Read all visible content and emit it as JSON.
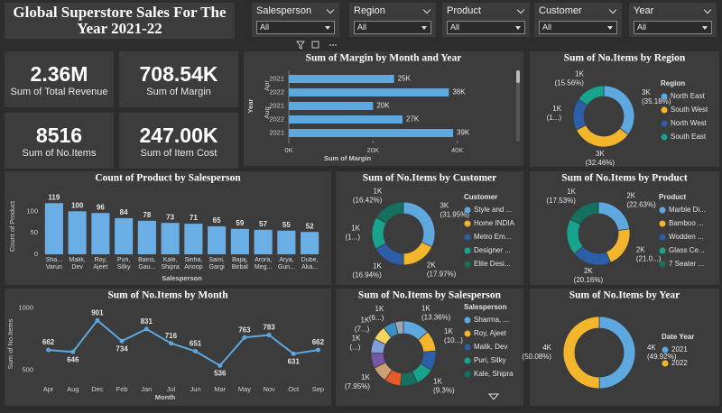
{
  "header": {
    "title": "Global Superstore Sales For The Year 2021-22"
  },
  "slicers": [
    {
      "label": "Salesperson",
      "value": "All"
    },
    {
      "label": "Region",
      "value": "All"
    },
    {
      "label": "Product",
      "value": "All"
    },
    {
      "label": "Customer",
      "value": "All"
    },
    {
      "label": "Year",
      "value": "All"
    }
  ],
  "cards": [
    {
      "value": "2.36M",
      "label": "Sum of Total Revenue"
    },
    {
      "value": "708.54K",
      "label": "Sum of Margin"
    },
    {
      "value": "8516",
      "label": "Sum of No.Items"
    },
    {
      "value": "247.00K",
      "label": "Sum of Item Cost"
    }
  ],
  "chart_data": [
    {
      "type": "hbar",
      "title": "Sum of Margin by Month and Year",
      "categories": [
        "2021",
        "2022",
        "2021",
        "2022",
        "2021"
      ],
      "group_labels": [
        "Apr",
        "Apr",
        "Aug",
        "Aug",
        null
      ],
      "values": [
        25000,
        38000,
        20000,
        27000,
        39000
      ],
      "value_labels": [
        "25K",
        "38K",
        "20K",
        "27K",
        "39K"
      ],
      "color": "#5ea8e0",
      "xlim": [
        0,
        45000
      ],
      "xticks": [
        {
          "value": 0,
          "label": "0K"
        },
        {
          "value": 20000,
          "label": "20K"
        },
        {
          "value": 40000,
          "label": "40K"
        }
      ],
      "x_label": "Sum of Margin",
      "y_label": "Year"
    },
    {
      "type": "donut",
      "title": "Sum of No.Items by Region",
      "legend_title": "Region",
      "categories": [
        "North East",
        "South West",
        "North West",
        "South East"
      ],
      "values": [
        2996,
        2764,
        1431,
        1325
      ],
      "value_labels": [
        "3K",
        "3K",
        "1K",
        "1K"
      ],
      "percent_labels": [
        "(35.18%)",
        "(32.46%)",
        "(1...)",
        "(15.56%)"
      ],
      "colors": [
        "#5ea8e0",
        "#f2b52c",
        "#2c5fa8",
        "#18a38f"
      ]
    },
    {
      "type": "bar",
      "title": "Count of Product by Salesperson",
      "categories": [
        "Sha... Varun",
        "Malik, Dev",
        "Roy, Ajeet",
        "Puri, Silky",
        "Bains, Gau...",
        "Kale, Shipra",
        "Sinha, Anoop",
        "Saini, Gargi",
        "Bajaj, Birbal",
        "Arora, Meg...",
        "Arya, Gun...",
        "Dube, Aka..."
      ],
      "values": [
        119,
        100,
        96,
        84,
        78,
        73,
        71,
        65,
        59,
        57,
        55,
        52
      ],
      "color": "#6aaee6",
      "ylim": [
        0,
        130
      ],
      "yticks": [
        0,
        50,
        100
      ],
      "x_label": "Salesperson",
      "y_label": "Count of Product"
    },
    {
      "type": "donut",
      "title": "Sum of No.Items by Customer",
      "legend_title": "Customer",
      "categories": [
        "Style and ...",
        "Home INDIA",
        "Metro Em...",
        "Designer ...",
        "Elite Desi..."
      ],
      "values": [
        2721,
        1530,
        1443,
        1424,
        1398
      ],
      "value_labels": [
        "3K",
        "2K",
        "1K",
        "1K",
        "1K"
      ],
      "percent_labels": [
        "(31.95%)",
        "(17.97%)",
        "(16.94%)",
        "(1...)",
        "(16.42%)"
      ],
      "colors": [
        "#5ea8e0",
        "#f2b52c",
        "#2c5fa8",
        "#18a38f",
        "#157060"
      ]
    },
    {
      "type": "donut",
      "title": "Sum of No.Items by Product",
      "legend_title": "Product",
      "categories": [
        "Marble Di...",
        "Bamboo ...",
        "Wodden ...",
        "Glass Ce...",
        "7 Seater ..."
      ],
      "values": [
        1927,
        1790,
        1717,
        1591,
        1493
      ],
      "value_labels": [
        "2K",
        "2K",
        "2K",
        null,
        "1K"
      ],
      "percent_labels": [
        "(22.63%)",
        "(21.0...)",
        "(20.16%)",
        null,
        "(17.53%)"
      ],
      "colors": [
        "#5ea8e0",
        "#f2b52c",
        "#2c5fa8",
        "#18a38f",
        "#157060"
      ]
    },
    {
      "type": "line",
      "title": "Sum of No.Items by Month",
      "categories": [
        "Apr",
        "Aug",
        "Dec",
        "Feb",
        "Jan",
        "Jul",
        "Jun",
        "Mar",
        "May",
        "Nov",
        "Oct",
        "Sep"
      ],
      "values": [
        662,
        646,
        901,
        734,
        831,
        716,
        651,
        536,
        763,
        783,
        631,
        662
      ],
      "color": "#5ea8e0",
      "ylim": [
        400,
        1020
      ],
      "yticks": [
        500,
        1000
      ],
      "x_label": "Month",
      "y_label": "Sum of No.Items"
    },
    {
      "type": "donut",
      "title": "Sum of No.Items by Salesperson",
      "legend_title": "Salesperson",
      "categories": [
        "Sharma, ...",
        "Roy, Ajeet",
        "Malik, Dev",
        "Puri, Silky",
        "Kale, Shipra",
        null,
        null,
        null,
        null,
        null,
        null,
        null
      ],
      "values": [
        1138,
        886,
        835,
        792,
        732,
        698,
        677,
        647,
        622,
        605,
        528,
        357
      ],
      "value_labels": [
        "1K",
        "1K",
        null,
        "1K",
        null,
        null,
        "1K",
        null,
        "1K",
        "1K",
        "1K",
        null
      ],
      "percent_labels": [
        "(13.36%)",
        "(10...)",
        null,
        "(9.3%)",
        null,
        null,
        "(7.95%)",
        null,
        "(...)",
        "(7...)",
        "(6...)",
        null
      ],
      "colors": [
        "#5ea8e0",
        "#f2b52c",
        "#2c5fa8",
        "#18a38f",
        "#157060",
        "#e85a2c",
        "#c9a071",
        "#7656a6",
        "#7e9fdb",
        "#f3d45f",
        "#3d8fc8",
        "#9aa6b2"
      ]
    },
    {
      "type": "donut",
      "title": "Sum of No.Items by Year",
      "legend_title": "Date Year",
      "categories": [
        "2021",
        "2022"
      ],
      "values": [
        4251,
        4265
      ],
      "value_labels": [
        "4K",
        "4K"
      ],
      "percent_labels": [
        "(49.92%)",
        "(50.08%)"
      ],
      "colors": [
        "#5ea8e0",
        "#f2b52c"
      ]
    }
  ]
}
